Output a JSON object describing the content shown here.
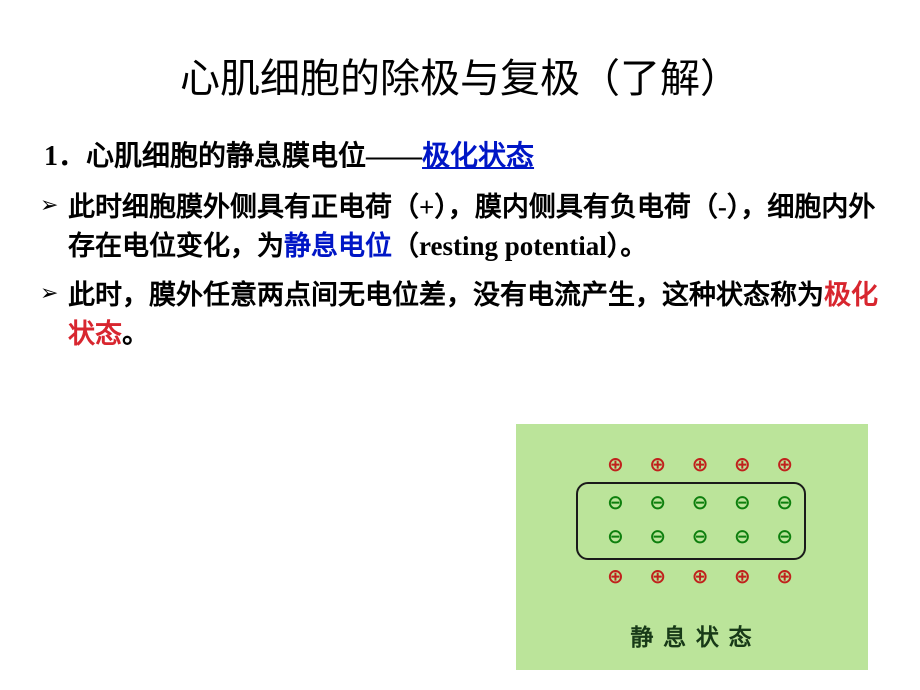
{
  "title": "心肌细胞的除极与复极（了解）",
  "section": {
    "number": "1．",
    "prefix": "心肌细胞的静息膜电位——",
    "link": "极化状态"
  },
  "bullets": [
    {
      "arrow": "➢",
      "p1": "此时细胞膜外侧具有正电荷（",
      "plus": "+",
      "p2": "），膜内侧具有负电荷（",
      "minus": "-",
      "p3": "），细胞内外存在电位变化，为",
      "term_blue": "静息电位",
      "p4": "（resting potential）。"
    },
    {
      "arrow": "➢",
      "p1": "此时，膜外任意两点间无电位差，没有电流产生，这种状态称为",
      "term_red": "极化状态",
      "p2": "。"
    }
  ],
  "diagram": {
    "box_bg": "#bbe49a",
    "cell_border": "#1a1a1a",
    "plus_color": "#c0211c",
    "minus_color": "#0d7f0d",
    "plus_symbol": "⊕",
    "minus_symbol": "⊖",
    "count": 5,
    "caption": "静 息 状 态"
  }
}
